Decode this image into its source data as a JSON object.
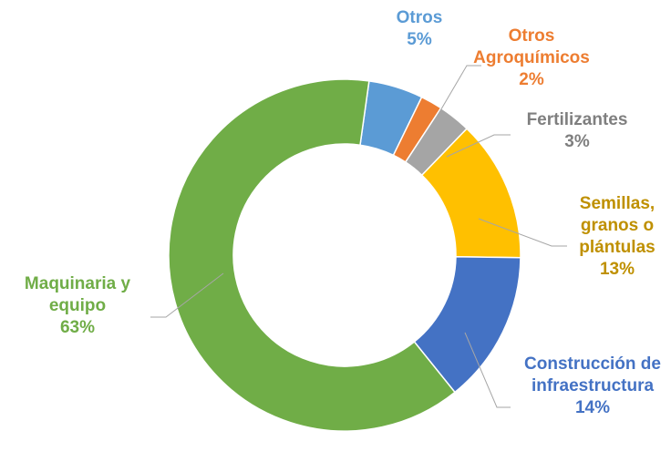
{
  "chart_data": {
    "type": "donut",
    "categories": [
      "Otros",
      "Otros Agroquímicos",
      "Fertilizantes",
      "Semillas, granos o plántulas",
      "Construcción de infraestructura",
      "Maquinaria y equipo"
    ],
    "values": [
      5,
      2,
      3,
      13,
      14,
      63
    ],
    "value_labels": [
      "5%",
      "2%",
      "3%",
      "13%",
      "14%",
      "63%"
    ],
    "colors": [
      "#5b9bd5",
      "#ed7d31",
      "#a5a5a5",
      "#ffc000",
      "#4472c4",
      "#70ad47"
    ],
    "label_colors": [
      "#5b9bd5",
      "#ed7d31",
      "#7f7f7f",
      "#bf9000",
      "#4472c4",
      "#70ad47"
    ]
  }
}
